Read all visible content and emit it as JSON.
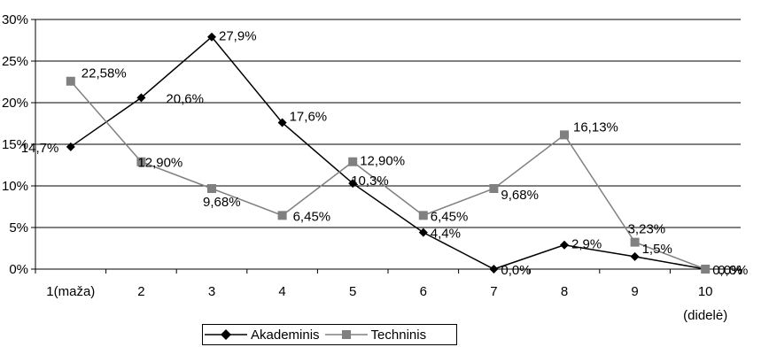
{
  "chart_data": {
    "type": "line",
    "categories": [
      "1(maža)",
      "2",
      "3",
      "4",
      "5",
      "6",
      "7",
      "8",
      "9",
      "10"
    ],
    "extra_x_label": "(didelė)",
    "ylim": [
      0,
      30
    ],
    "yticks": [
      "0%",
      "5%",
      "10%",
      "15%",
      "20%",
      "25%",
      "30%"
    ],
    "grid": true,
    "legend_position": "bottom",
    "series": [
      {
        "name": "Akademinis",
        "color": "#000000",
        "marker": "diamond",
        "values": [
          14.7,
          20.6,
          27.9,
          17.6,
          10.3,
          4.4,
          0.0,
          2.9,
          1.5,
          0.0
        ],
        "labels": [
          "14,7%",
          "20,6%",
          "27,9%",
          "17,6%",
          "10,3%",
          "4,4%",
          "0,0%",
          "2,9%",
          "1,5%",
          "0,0%"
        ]
      },
      {
        "name": "Techninis",
        "color": "#808080",
        "marker": "square",
        "values": [
          22.58,
          12.9,
          9.68,
          6.45,
          12.9,
          6.45,
          9.68,
          16.13,
          3.23,
          0.0
        ],
        "labels": [
          "22,58%",
          "12,90%",
          "9,68%",
          "6,45%",
          "12,90%",
          "6,45%",
          "9,68%",
          "16,13%",
          "3,23%",
          "0,0%"
        ]
      }
    ]
  }
}
